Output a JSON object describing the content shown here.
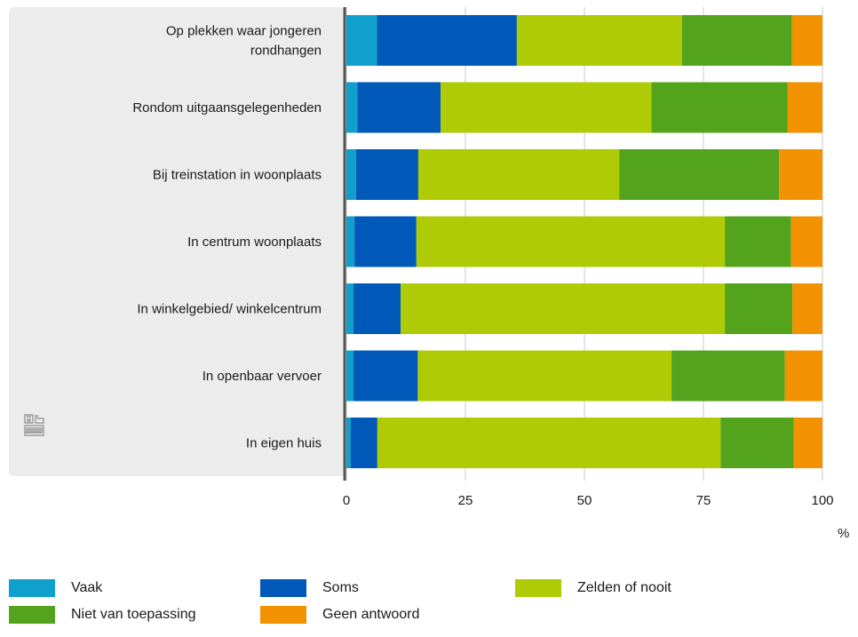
{
  "chart_data": {
    "type": "bar",
    "orientation": "horizontal",
    "stacked": true,
    "categories": [
      [
        "Op plekken waar jongeren",
        "rondhangen"
      ],
      [
        "Rondom uitgaansgelegenheden"
      ],
      [
        "Bij treinstation in woonplaats"
      ],
      [
        "In centrum woonplaats"
      ],
      [
        "In winkelgebied/ winkelcentrum"
      ],
      [
        "In openbaar vervoer"
      ],
      [
        "In eigen huis"
      ]
    ],
    "series": [
      {
        "name": "Vaak",
        "color": "#0fa0cc",
        "values": [
          6.4,
          2.3,
          2.0,
          1.7,
          1.5,
          1.5,
          0.9
        ]
      },
      {
        "name": "Soms",
        "color": "#0058b8",
        "values": [
          29.4,
          17.5,
          13.1,
          13.0,
          9.9,
          13.5,
          5.6
        ]
      },
      {
        "name": "Zelden of nooit",
        "color": "#afcb05",
        "values": [
          34.7,
          44.3,
          42.2,
          64.8,
          68.1,
          53.3,
          72.1
        ]
      },
      {
        "name": "Niet van toepassing",
        "color": "#53a31d",
        "values": [
          23.1,
          28.6,
          33.6,
          13.9,
          14.2,
          23.8,
          15.4
        ]
      },
      {
        "name": "Geen antwoord",
        "color": "#f39200",
        "values": [
          6.4,
          7.3,
          9.1,
          6.6,
          6.3,
          7.9,
          6.0
        ]
      }
    ],
    "x_ticks": [
      "0",
      "25",
      "50",
      "75",
      "100"
    ],
    "xlim": [
      0,
      100
    ],
    "unit": "%",
    "legend_position": "bottom"
  },
  "logo": {
    "name": "cbs-logo-icon",
    "text": "cbs"
  }
}
